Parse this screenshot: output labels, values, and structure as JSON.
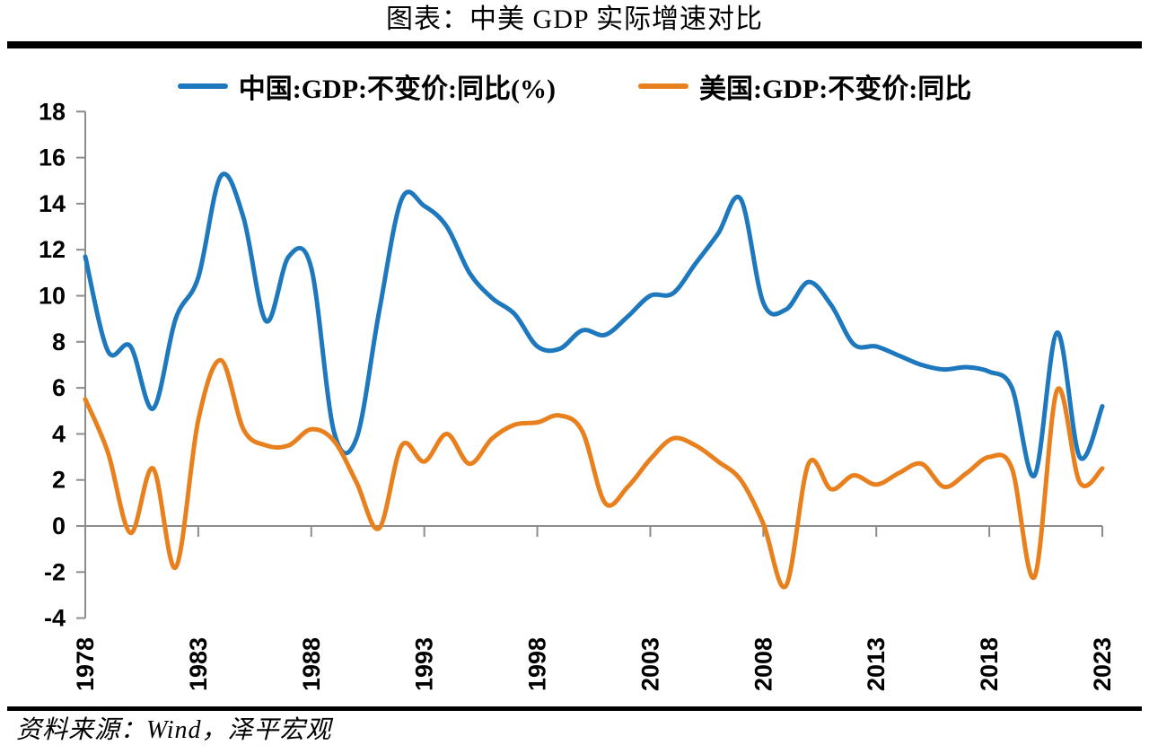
{
  "page": {
    "title": "图表：中美 GDP 实际增速对比",
    "source": "资料来源：Wind，泽平宏观"
  },
  "chart_data": {
    "type": "line",
    "smoothed": true,
    "title": "图表：中美 GDP 实际增速对比",
    "xlabel": "",
    "ylabel": "",
    "x": [
      1978,
      1979,
      1980,
      1981,
      1982,
      1983,
      1984,
      1985,
      1986,
      1987,
      1988,
      1989,
      1990,
      1991,
      1992,
      1993,
      1994,
      1995,
      1996,
      1997,
      1998,
      1999,
      2000,
      2001,
      2002,
      2003,
      2004,
      2005,
      2006,
      2007,
      2008,
      2009,
      2010,
      2011,
      2012,
      2013,
      2014,
      2015,
      2016,
      2017,
      2018,
      2019,
      2020,
      2021,
      2022,
      2023
    ],
    "series": [
      {
        "name": "中国:GDP:不变价:同比(%)",
        "color": "#1D78BE",
        "values": [
          11.7,
          7.6,
          7.8,
          5.1,
          9.0,
          10.8,
          15.2,
          13.4,
          8.9,
          11.7,
          11.2,
          4.1,
          3.8,
          9.3,
          14.2,
          13.9,
          13.0,
          11.0,
          9.9,
          9.2,
          7.8,
          7.7,
          8.5,
          8.3,
          9.1,
          10.0,
          10.1,
          11.4,
          12.7,
          14.2,
          9.7,
          9.4,
          10.6,
          9.6,
          7.9,
          7.8,
          7.4,
          7.0,
          6.8,
          6.9,
          6.7,
          6.0,
          2.2,
          8.4,
          3.0,
          5.2
        ]
      },
      {
        "name": "美国:GDP:不变价:同比",
        "color": "#E8801E",
        "values": [
          5.5,
          3.2,
          -0.3,
          2.5,
          -1.8,
          4.6,
          7.2,
          4.2,
          3.5,
          3.5,
          4.2,
          3.7,
          1.9,
          -0.1,
          3.5,
          2.8,
          4.0,
          2.7,
          3.8,
          4.4,
          4.5,
          4.8,
          4.1,
          1.0,
          1.7,
          2.9,
          3.8,
          3.5,
          2.8,
          2.0,
          0.1,
          -2.6,
          2.7,
          1.6,
          2.2,
          1.8,
          2.3,
          2.7,
          1.7,
          2.3,
          3.0,
          2.5,
          -2.2,
          5.9,
          1.9,
          2.5
        ]
      }
    ],
    "ylim": [
      -4,
      18
    ],
    "y_ticks": [
      18,
      16,
      14,
      12,
      10,
      8,
      6,
      4,
      2,
      0,
      -2,
      -4
    ],
    "x_ticks": [
      1978,
      1983,
      1988,
      1993,
      1998,
      2003,
      2008,
      2013,
      2018,
      2023
    ],
    "grid": false,
    "legend_position": "top",
    "axis_color": "#8C8C8C",
    "tick_label_color": "#000000"
  }
}
